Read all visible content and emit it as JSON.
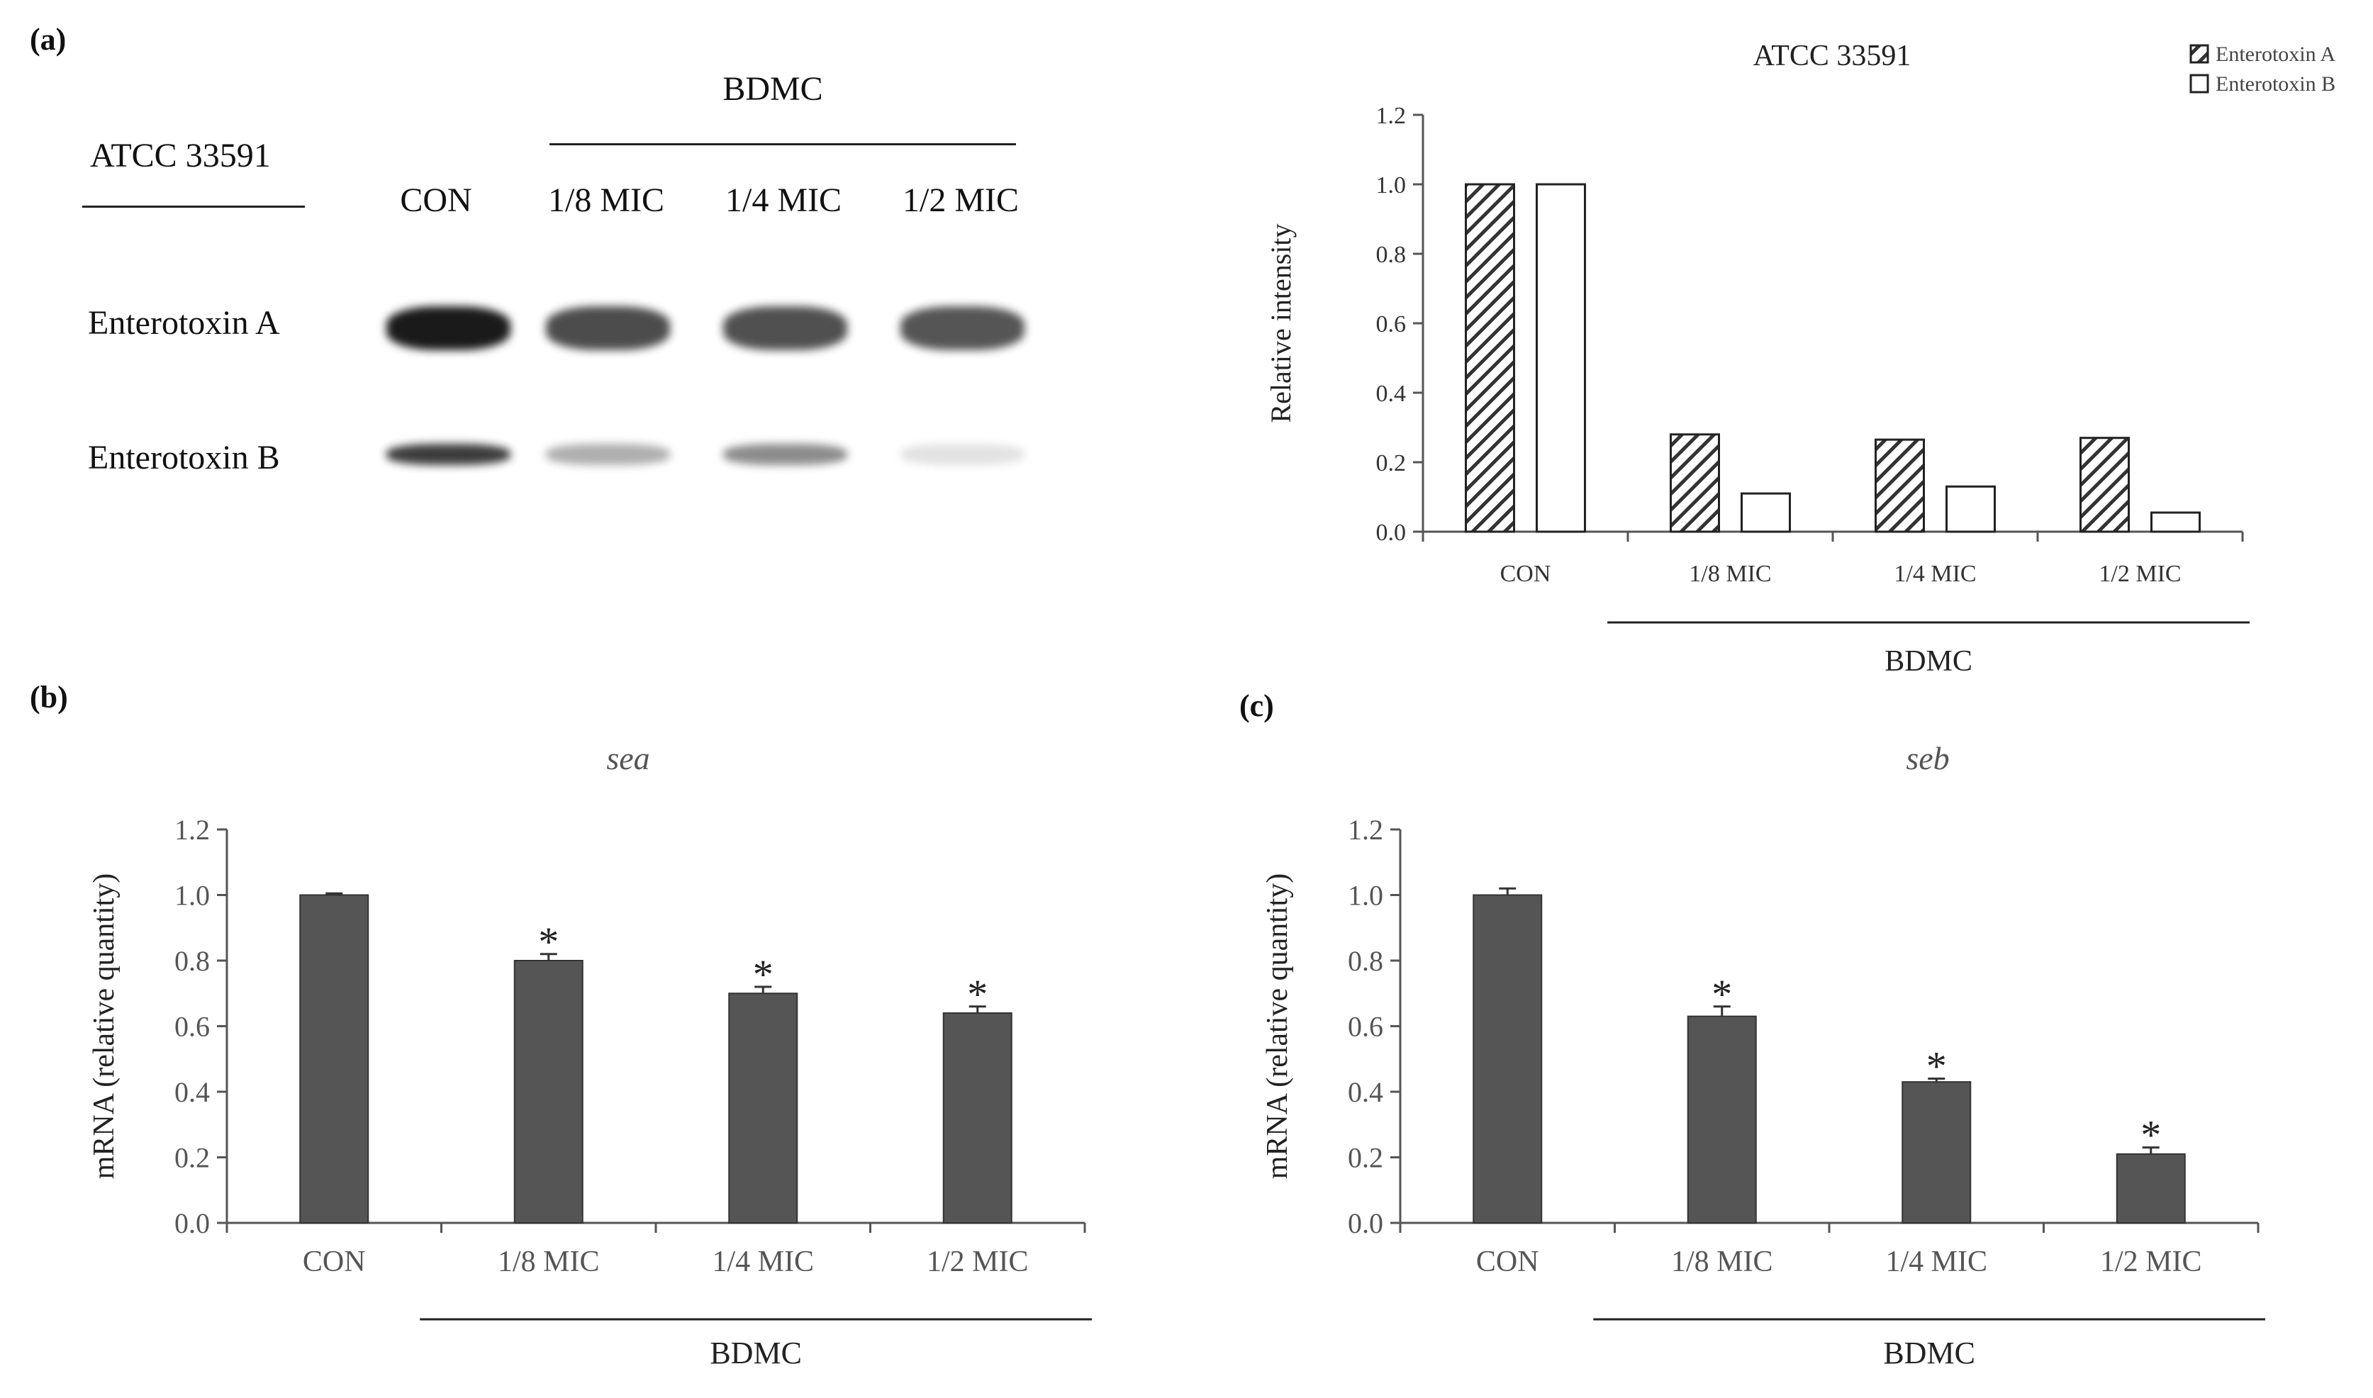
{
  "colors": {
    "bar_dark": "#555555",
    "axis": "#555555",
    "text_gray": "#555555",
    "band_dark": "#1a1a1a"
  },
  "panels": {
    "a": "(a)",
    "b": "(b)",
    "c": "(c)"
  },
  "blot": {
    "strain": "ATCC 33591",
    "group": "BDMC",
    "lanes": [
      "CON",
      "1/8 MIC",
      "1/4 MIC",
      "1/2 MIC"
    ],
    "rows": [
      "Enterotoxin A",
      "Enterotoxin B"
    ],
    "band_intensity": {
      "Enterotoxin A": [
        1.0,
        0.78,
        0.76,
        0.74
      ],
      "Enterotoxin B": [
        0.85,
        0.35,
        0.5,
        0.12
      ]
    }
  },
  "chart_data": [
    {
      "id": "densitometry",
      "type": "bar",
      "title": "ATCC 33591",
      "xlabel": "",
      "ylabel": "Relative intensity",
      "group_label": "BDMC",
      "categories": [
        "CON",
        "1/8 MIC",
        "1/4 MIC",
        "1/2 MIC"
      ],
      "series": [
        {
          "name": "Enterotoxin A",
          "pattern": "hatched",
          "values": [
            1.0,
            0.28,
            0.265,
            0.27
          ]
        },
        {
          "name": "Enterotoxin B",
          "pattern": "open",
          "values": [
            1.0,
            0.11,
            0.13,
            0.055
          ]
        }
      ],
      "ylim": [
        0,
        1.2
      ],
      "yticks": [
        "0.0",
        "0.2",
        "0.4",
        "0.6",
        "0.8",
        "1.0",
        "1.2"
      ],
      "legend": "top-right"
    },
    {
      "id": "sea",
      "type": "bar",
      "title": "sea",
      "xlabel": "",
      "ylabel": "mRNA (relative quantity)",
      "group_label": "BDMC",
      "categories": [
        "CON",
        "1/8 MIC",
        "1/4 MIC",
        "1/2 MIC"
      ],
      "values": [
        1.0,
        0.8,
        0.7,
        0.64
      ],
      "errors": [
        0.005,
        0.02,
        0.02,
        0.02
      ],
      "significant": [
        false,
        true,
        true,
        true
      ],
      "sig_marker": "*",
      "ylim": [
        0,
        1.2
      ],
      "yticks": [
        "0.0",
        "0.2",
        "0.4",
        "0.6",
        "0.8",
        "1.0",
        "1.2"
      ]
    },
    {
      "id": "seb",
      "type": "bar",
      "title": "seb",
      "xlabel": "",
      "ylabel": "mRNA (relative quantity)",
      "group_label": "BDMC",
      "categories": [
        "CON",
        "1/8 MIC",
        "1/4 MIC",
        "1/2 MIC"
      ],
      "values": [
        1.0,
        0.63,
        0.43,
        0.21
      ],
      "errors": [
        0.02,
        0.03,
        0.01,
        0.02
      ],
      "significant": [
        false,
        true,
        true,
        true
      ],
      "sig_marker": "*",
      "ylim": [
        0,
        1.2
      ],
      "yticks": [
        "0.0",
        "0.2",
        "0.4",
        "0.6",
        "0.8",
        "1.0",
        "1.2"
      ]
    }
  ]
}
